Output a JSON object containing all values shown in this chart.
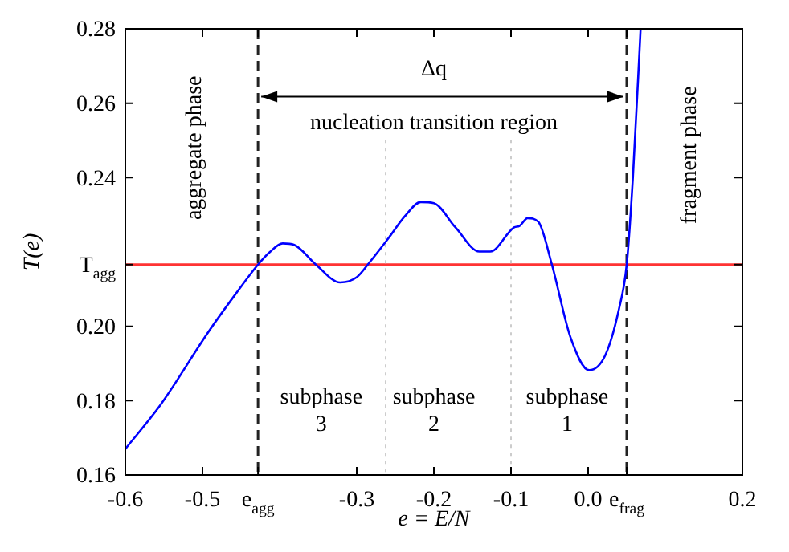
{
  "chart_data": {
    "type": "line",
    "xlabel": "e = E/N",
    "ylabel": "T(e)",
    "xlim": [
      -0.6,
      0.2
    ],
    "ylim": [
      0.16,
      0.28
    ],
    "xticks": [
      -0.6,
      -0.5,
      {
        "value": -0.428,
        "label": "e$_{agg}$"
      },
      -0.3,
      -0.2,
      -0.1,
      {
        "value": 0,
        "label": "0.0"
      },
      {
        "value": 0.05,
        "label": "e$_{frag}$"
      },
      0.2
    ],
    "yticks": [
      0.16,
      0.18,
      {
        "value": 0.2,
        "label": "0.20"
      },
      {
        "value": 0.2166,
        "label": "T$_{agg}$"
      },
      0.24,
      0.26,
      0.28
    ],
    "series": [
      {
        "color": "#0000ff",
        "x": [
          -0.6,
          -0.554,
          -0.492,
          -0.457,
          -0.428,
          -0.4125,
          -0.396,
          -0.381,
          -0.353,
          -0.3215,
          -0.3,
          -0.283,
          -0.256,
          -0.238,
          -0.217,
          -0.2,
          -0.172,
          -0.141,
          -0.127,
          -0.096,
          -0.089,
          -0.0785,
          -0.0646,
          -0.047,
          -0.023,
          0.0014,
          0.022,
          0.0396,
          0.05,
          0.058,
          0.068
        ],
        "values": [
          0.167,
          0.179,
          0.1986,
          0.2087,
          0.2166,
          0.22,
          0.2223,
          0.2219,
          0.2166,
          0.2118,
          0.2132,
          0.2173,
          0.2245,
          0.2295,
          0.2334,
          0.2331,
          0.2266,
          0.2201,
          0.2201,
          0.2266,
          0.227,
          0.2291,
          0.2281,
          0.2166,
          0.1971,
          0.1882,
          0.1921,
          0.2043,
          0.2166,
          0.24,
          0.28
        ]
      }
    ],
    "ref_lines": [
      {
        "axis": "y",
        "value": 0.2166,
        "color": "#ff3333",
        "line_style": "solid"
      },
      {
        "axis": "x",
        "value": -0.428,
        "color": "#222222",
        "line_style": "dashed"
      },
      {
        "axis": "x",
        "value": 0.05,
        "color": "#222222",
        "line_style": "dashed"
      },
      {
        "axis": "x",
        "value": -0.2625,
        "color": "#cccccc",
        "line_style": "dotted"
      },
      {
        "axis": "x",
        "value": -0.1,
        "color": "#cccccc",
        "line_style": "dotted"
      }
    ],
    "annotations": [
      "aggregate phase",
      "fragment phase",
      "Δq",
      "nucleation transition region",
      "subphase\n3",
      "subphase\n2",
      "subphase\n1"
    ],
    "legend": false,
    "grid": false,
    "marker": "none",
    "line_style": "solid"
  }
}
